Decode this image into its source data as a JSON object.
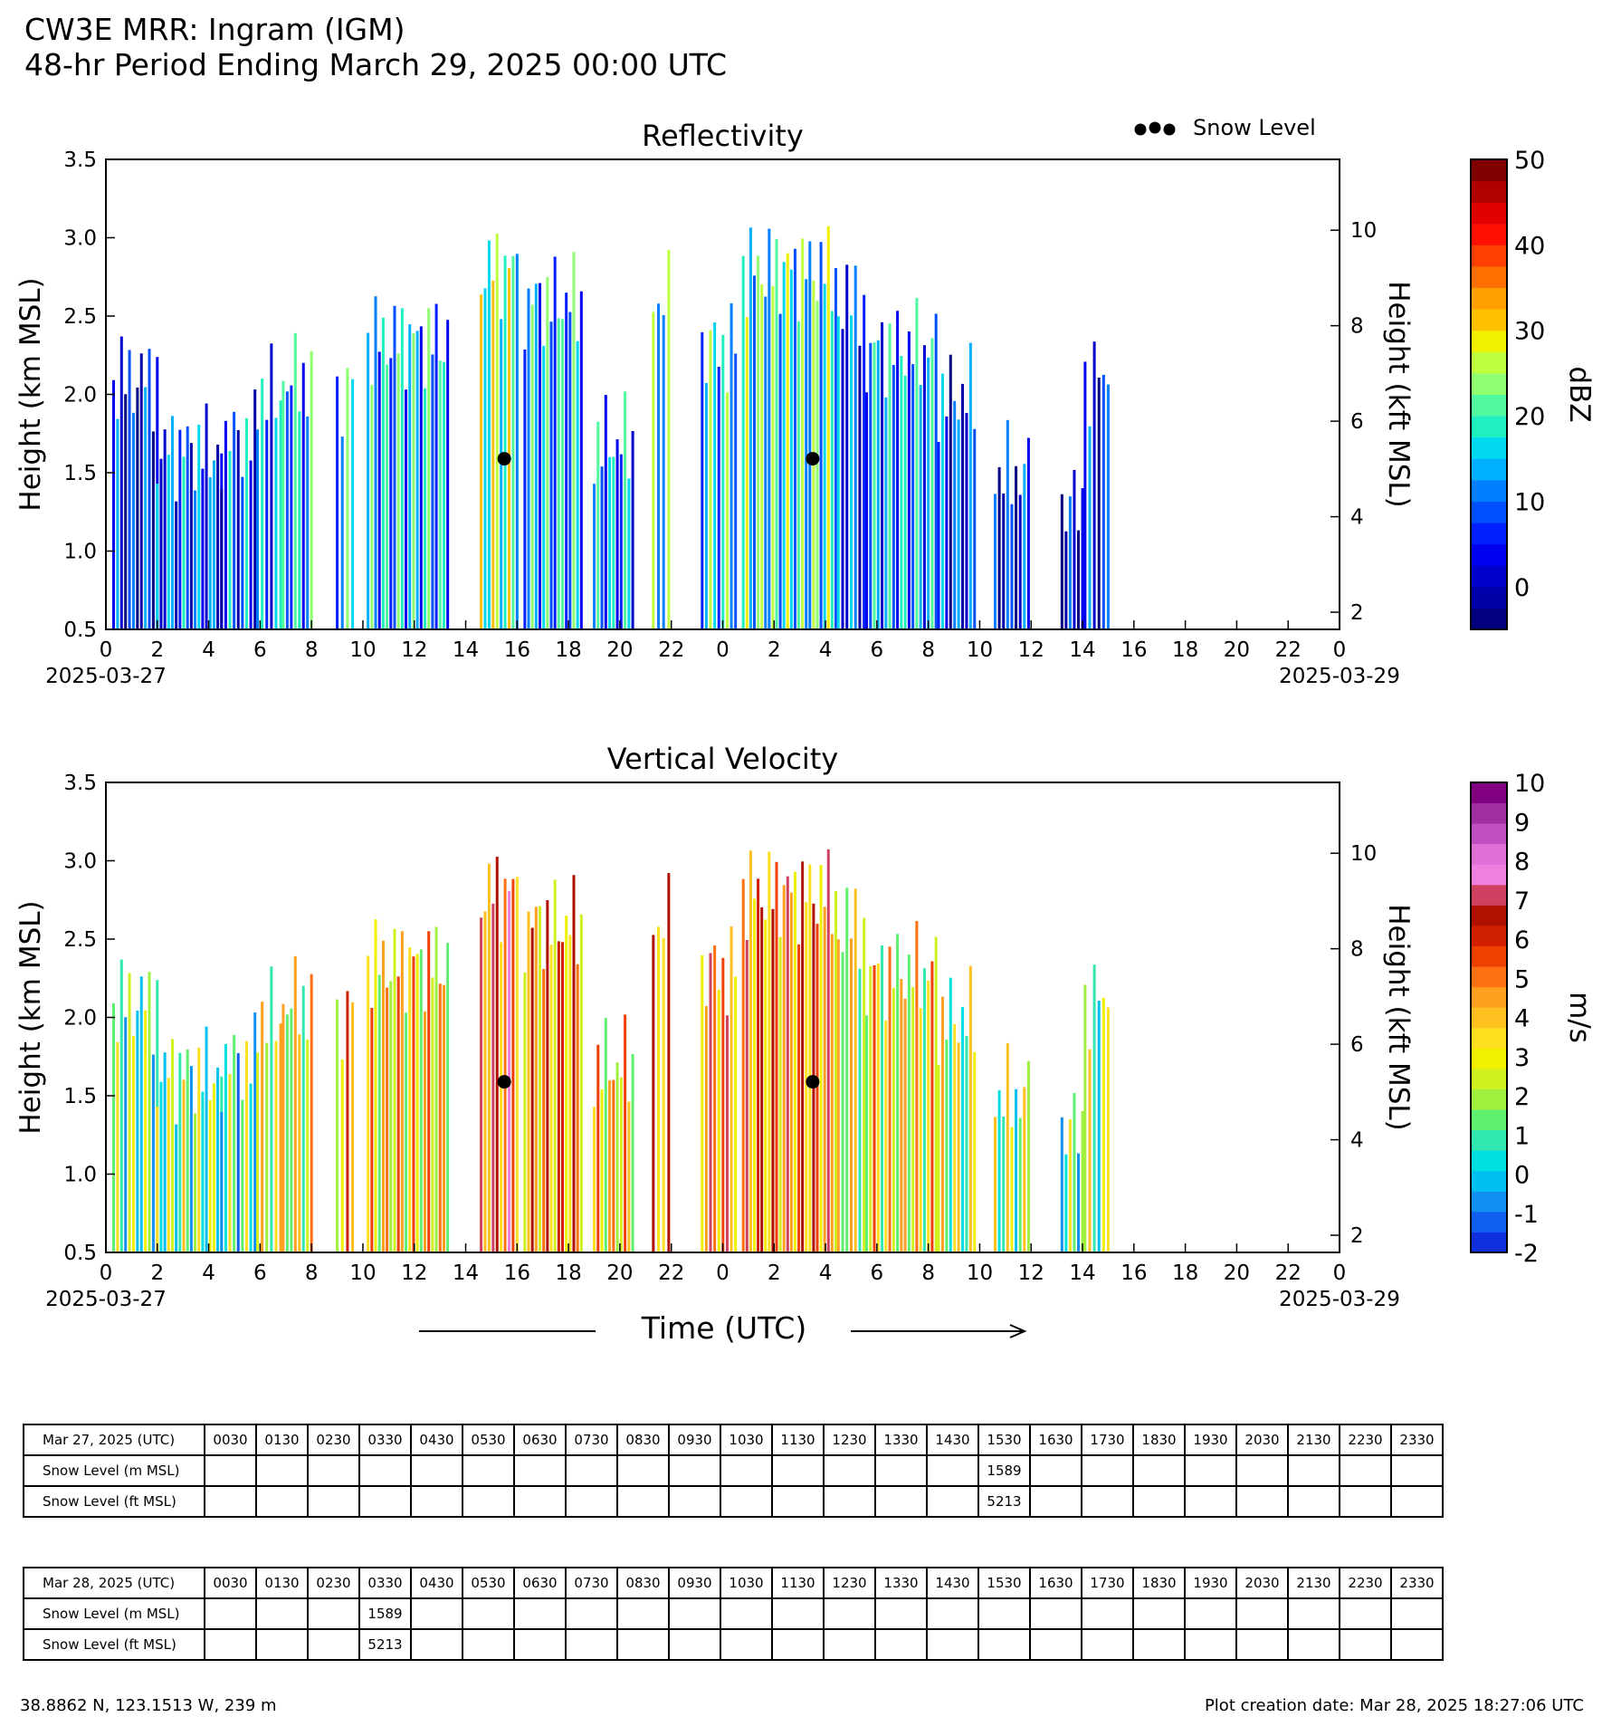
{
  "header": {
    "title": "CW3E MRR: Ingram (IGM)",
    "subtitle": "48-hr Period Ending March 29, 2025 00:00 UTC"
  },
  "legend": {
    "marker_label": "Snow Level"
  },
  "colors": {
    "snow_marker": "#000000",
    "reflectivity_scale": [
      "#000080",
      "#0000a8",
      "#0000cc",
      "#0000f0",
      "#0020ff",
      "#0050ff",
      "#0080ff",
      "#00b0ff",
      "#00d8f0",
      "#20f0c0",
      "#50f8a0",
      "#90ff70",
      "#c0ff40",
      "#f0f000",
      "#ffc000",
      "#ffa000",
      "#ff7000",
      "#ff4000",
      "#ff1000",
      "#e00000",
      "#b00000",
      "#800000"
    ],
    "velocity_scale": [
      "#1030e0",
      "#1060f0",
      "#1090f0",
      "#00c0f0",
      "#00e0e0",
      "#30e8b0",
      "#60f070",
      "#a0f040",
      "#d0f020",
      "#f0f000",
      "#ffe020",
      "#ffc020",
      "#ffa020",
      "#ff7010",
      "#f04000",
      "#d02000",
      "#b01000",
      "#d04060",
      "#f080e0",
      "#e070d8",
      "#c050c0",
      "#a030a0",
      "#800080"
    ]
  },
  "chart_data": [
    {
      "type": "heatmap",
      "title": "Reflectivity",
      "xlabel": "",
      "ylabel": "Height (km MSL)",
      "ylabel_right": "Height (kft MSL)",
      "yticks": [
        "0.5",
        "1.0",
        "1.5",
        "2.0",
        "2.5",
        "3.0",
        "3.5"
      ],
      "ylim": [
        0.5,
        3.5
      ],
      "yticks_right": [
        "2",
        "4",
        "6",
        "8",
        "10"
      ],
      "xlim_hours": [
        0,
        48
      ],
      "xticks": [
        "0",
        "2",
        "4",
        "6",
        "8",
        "10",
        "12",
        "14",
        "16",
        "18",
        "20",
        "22",
        "0",
        "2",
        "4",
        "6",
        "8",
        "10",
        "12",
        "14",
        "16",
        "18",
        "20",
        "22",
        "0"
      ],
      "date_start": "2025-03-27",
      "date_end": "2025-03-29",
      "colorbar": {
        "label": "dBZ",
        "ticks": [
          "50",
          "40",
          "30",
          "20",
          "10",
          "0"
        ],
        "range": [
          -5,
          50
        ]
      },
      "snow_level_points": [
        {
          "time": "2025-03-27 15:30",
          "height_km": 1.589
        },
        {
          "time": "2025-03-28 03:30",
          "height_km": 1.589
        }
      ],
      "precip_periods": [
        {
          "start": 0.3,
          "end": 2.0,
          "top_km": 2.1,
          "value": 4
        },
        {
          "start": 2.0,
          "end": 4.5,
          "top_km": 1.65,
          "value": 8
        },
        {
          "start": 4.5,
          "end": 5.8,
          "top_km": 1.72,
          "value": 8
        },
        {
          "start": 5.9,
          "end": 6.8,
          "top_km": 2.0,
          "value": 10
        },
        {
          "start": 6.9,
          "end": 8.0,
          "top_km": 2.1,
          "value": 14
        },
        {
          "start": 9.0,
          "end": 9.6,
          "top_km": 2.0,
          "value": 14
        },
        {
          "start": 10.2,
          "end": 13.3,
          "top_km": 2.35,
          "value": 14
        },
        {
          "start": 14.6,
          "end": 16.0,
          "top_km": 2.8,
          "value": 22
        },
        {
          "start": 16.3,
          "end": 18.5,
          "top_km": 2.6,
          "value": 14
        },
        {
          "start": 19.0,
          "end": 20.5,
          "top_km": 1.7,
          "value": 12
        },
        {
          "start": 21.3,
          "end": 21.9,
          "top_km": 2.6,
          "value": 18
        },
        {
          "start": 23.2,
          "end": 24.5,
          "top_km": 2.3,
          "value": 16
        },
        {
          "start": 24.8,
          "end": 28.4,
          "top_km": 2.8,
          "value": 18
        },
        {
          "start": 28.5,
          "end": 29.5,
          "top_km": 2.6,
          "value": 8
        },
        {
          "start": 29.6,
          "end": 32.3,
          "top_km": 2.3,
          "value": 12
        },
        {
          "start": 32.4,
          "end": 33.8,
          "top_km": 2.0,
          "value": 6
        },
        {
          "start": 34.6,
          "end": 35.9,
          "top_km": 1.5,
          "value": 4
        },
        {
          "start": 37.2,
          "end": 38.0,
          "top_km": 1.3,
          "value": 2
        },
        {
          "start": 38.1,
          "end": 39.0,
          "top_km": 2.1,
          "value": 4
        }
      ]
    },
    {
      "type": "heatmap",
      "title": "Vertical Velocity",
      "xlabel": "Time (UTC)",
      "ylabel": "Height (km MSL)",
      "ylabel_right": "Height (kft MSL)",
      "yticks": [
        "0.5",
        "1.0",
        "1.5",
        "2.0",
        "2.5",
        "3.0",
        "3.5"
      ],
      "ylim": [
        0.5,
        3.5
      ],
      "yticks_right": [
        "2",
        "4",
        "6",
        "8",
        "10"
      ],
      "xlim_hours": [
        0,
        48
      ],
      "xticks": [
        "0",
        "2",
        "4",
        "6",
        "8",
        "10",
        "12",
        "14",
        "16",
        "18",
        "20",
        "22",
        "0",
        "2",
        "4",
        "6",
        "8",
        "10",
        "12",
        "14",
        "16",
        "18",
        "20",
        "22",
        "0"
      ],
      "date_start": "2025-03-27",
      "date_end": "2025-03-29",
      "colorbar": {
        "label": "m/s",
        "ticks": [
          "10",
          "9",
          "8",
          "7",
          "6",
          "5",
          "4",
          "3",
          "2",
          "1",
          "0",
          "-1",
          "-2"
        ],
        "range": [
          -2,
          10
        ]
      },
      "snow_level_points": [
        {
          "time": "2025-03-27 15:30",
          "height_km": 1.589
        },
        {
          "time": "2025-03-28 03:30",
          "height_km": 1.589
        }
      ],
      "precip_periods": [
        {
          "start": 0.3,
          "end": 2.0,
          "top_km": 2.1,
          "value": 1.2
        },
        {
          "start": 2.0,
          "end": 4.5,
          "top_km": 1.65,
          "value": 1.6
        },
        {
          "start": 4.5,
          "end": 5.8,
          "top_km": 1.72,
          "value": 1.2
        },
        {
          "start": 5.9,
          "end": 6.8,
          "top_km": 2.0,
          "value": 2.6
        },
        {
          "start": 6.9,
          "end": 8.0,
          "top_km": 2.1,
          "value": 2.8
        },
        {
          "start": 9.0,
          "end": 9.6,
          "top_km": 2.0,
          "value": 3.8
        },
        {
          "start": 10.2,
          "end": 13.3,
          "top_km": 2.35,
          "value": 3.5
        },
        {
          "start": 14.6,
          "end": 16.0,
          "top_km": 2.8,
          "value": 5.5
        },
        {
          "start": 16.3,
          "end": 18.5,
          "top_km": 2.6,
          "value": 4.5
        },
        {
          "start": 19.0,
          "end": 20.5,
          "top_km": 1.7,
          "value": 3.5
        },
        {
          "start": 21.3,
          "end": 21.9,
          "top_km": 2.6,
          "value": 4.8
        },
        {
          "start": 23.2,
          "end": 24.5,
          "top_km": 2.3,
          "value": 5.0
        },
        {
          "start": 24.8,
          "end": 28.4,
          "top_km": 2.8,
          "value": 4.8
        },
        {
          "start": 28.5,
          "end": 29.5,
          "top_km": 2.6,
          "value": 2.8
        },
        {
          "start": 29.6,
          "end": 32.3,
          "top_km": 2.3,
          "value": 3.2
        },
        {
          "start": 32.4,
          "end": 33.8,
          "top_km": 2.0,
          "value": 2.2
        },
        {
          "start": 34.6,
          "end": 35.9,
          "top_km": 1.5,
          "value": 2.0
        },
        {
          "start": 37.2,
          "end": 38.0,
          "top_km": 1.3,
          "value": 1.2
        },
        {
          "start": 38.1,
          "end": 39.0,
          "top_km": 2.1,
          "value": 1.8
        }
      ]
    }
  ],
  "tables": [
    {
      "date_label": "Mar 27, 2025 (UTC)",
      "row_labels": [
        "Snow Level (m MSL)",
        "Snow Level (ft MSL)"
      ],
      "times": [
        "0030",
        "0130",
        "0230",
        "0330",
        "0430",
        "0530",
        "0630",
        "0730",
        "0830",
        "0930",
        "1030",
        "1130",
        "1230",
        "1330",
        "1430",
        "1530",
        "1630",
        "1730",
        "1830",
        "1930",
        "2030",
        "2130",
        "2230",
        "2330"
      ],
      "m_values": [
        "",
        "",
        "",
        "",
        "",
        "",
        "",
        "",
        "",
        "",
        "",
        "",
        "",
        "",
        "",
        "1589",
        "",
        "",
        "",
        "",
        "",
        "",
        "",
        ""
      ],
      "ft_values": [
        "",
        "",
        "",
        "",
        "",
        "",
        "",
        "",
        "",
        "",
        "",
        "",
        "",
        "",
        "",
        "5213",
        "",
        "",
        "",
        "",
        "",
        "",
        "",
        ""
      ]
    },
    {
      "date_label": "Mar 28, 2025 (UTC)",
      "row_labels": [
        "Snow Level (m MSL)",
        "Snow Level (ft MSL)"
      ],
      "times": [
        "0030",
        "0130",
        "0230",
        "0330",
        "0430",
        "0530",
        "0630",
        "0730",
        "0830",
        "0930",
        "1030",
        "1130",
        "1230",
        "1330",
        "1430",
        "1530",
        "1630",
        "1730",
        "1830",
        "1930",
        "2030",
        "2130",
        "2230",
        "2330"
      ],
      "m_values": [
        "",
        "",
        "",
        "1589",
        "",
        "",
        "",
        "",
        "",
        "",
        "",
        "",
        "",
        "",
        "",
        "",
        "",
        "",
        "",
        "",
        "",
        "",
        "",
        ""
      ],
      "ft_values": [
        "",
        "",
        "",
        "5213",
        "",
        "",
        "",
        "",
        "",
        "",
        "",
        "",
        "",
        "",
        "",
        "",
        "",
        "",
        "",
        "",
        "",
        "",
        "",
        ""
      ]
    }
  ],
  "footer": {
    "coords": "38.8862 N, 123.1513 W, 239 m",
    "created": "Plot creation date: Mar 28, 2025 18:27:06 UTC"
  }
}
